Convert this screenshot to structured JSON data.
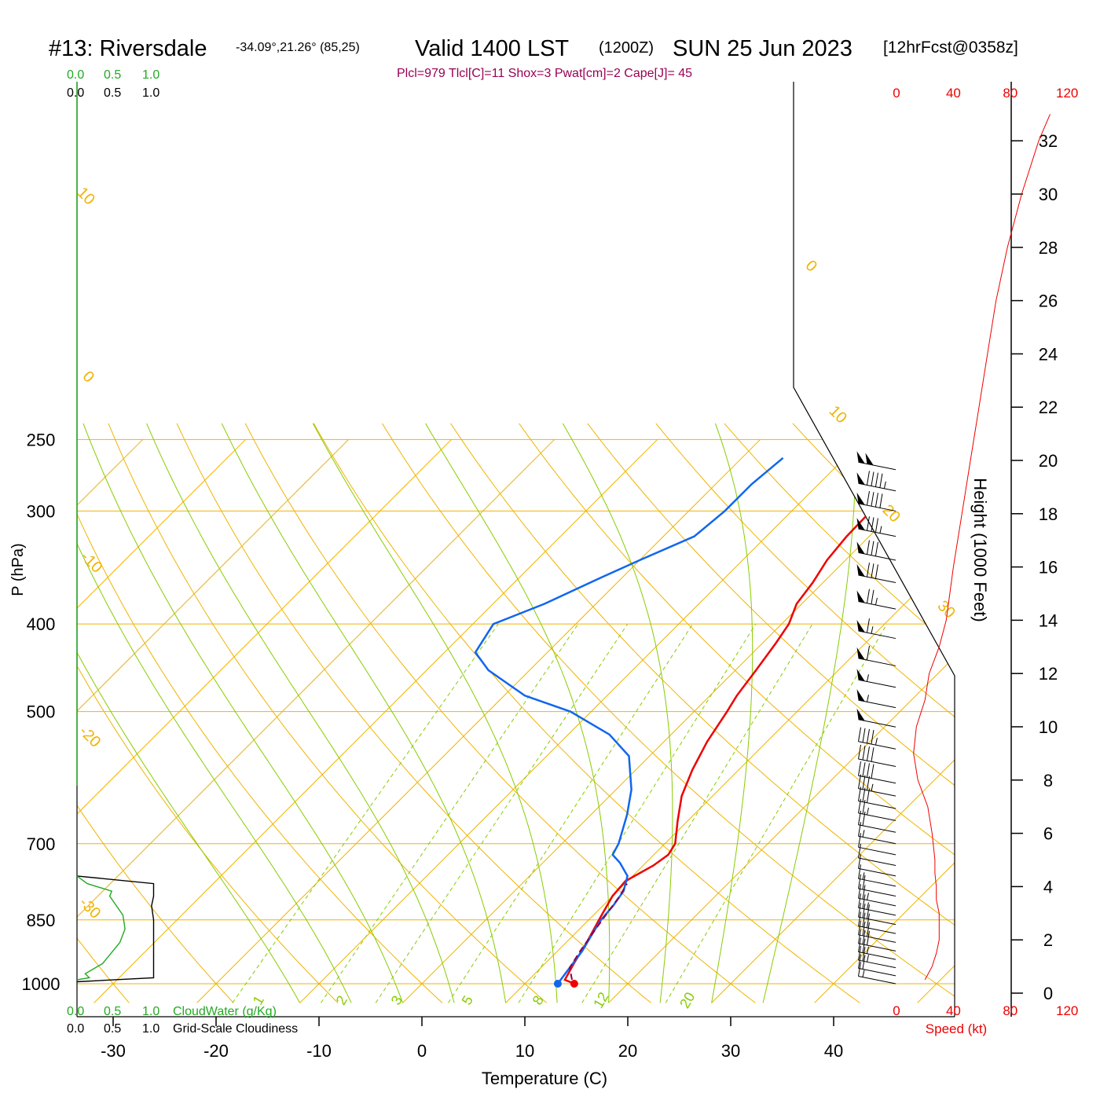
{
  "header": {
    "station": "#13: Riversdale",
    "coords": "-34.09°,21.26° (85,25)",
    "valid": "Valid 1400 LST",
    "zulu": "(1200Z)",
    "date": "SUN 25 Jun 2023",
    "forecast": "[12hrFcst@0358z]",
    "indices": "Plcl=979 Tlcl[C]=11 Shox=3 Pwat[cm]=2 Cape[J]= 45"
  },
  "legend": {
    "cloud_scale_top": [
      "0.0",
      "0.5",
      "1.0"
    ],
    "cloud_scale_bottom": [
      "0.0",
      "0.5",
      "1.0"
    ],
    "cloudwater_label": "CloudWater (g/Kg)",
    "cloudiness_label": "Grid-Scale Cloudiness"
  },
  "colors": {
    "isotherm": "#f0b400",
    "dry_adiabat": "#f0b400",
    "moist_adiabat": "#88cc00",
    "mixing_ratio": "#88cc00",
    "temperature": "#ee0000",
    "dewpoint": "#1166ee",
    "parcel": "#8b004b",
    "cloudwater": "#22aa22",
    "speed": "#ee0000",
    "indices": "#990055"
  },
  "chart_data": {
    "type": "line",
    "subtype": "skew-t log-p sounding",
    "xlabel": "Temperature (C)",
    "ylabel": "P (hPa)",
    "right_label": "Height (1000 Feet)",
    "speed_label": "Speed (kt)",
    "x_ticks": [
      "-30",
      "-20",
      "-10",
      "0",
      "10",
      "20",
      "30",
      "40"
    ],
    "y_ticks": [
      "250",
      "300",
      "400",
      "500",
      "700",
      "850",
      "1000"
    ],
    "height_ticks": [
      "0",
      "2",
      "4",
      "6",
      "8",
      "10",
      "12",
      "14",
      "16",
      "18",
      "20",
      "22",
      "24",
      "26",
      "28",
      "30",
      "32"
    ],
    "speed_ticks": [
      "0",
      "40",
      "80",
      "120"
    ],
    "isotherm_labels": [
      "10",
      "0",
      "-10",
      "-20",
      "-30",
      "0",
      "10",
      "20",
      "30"
    ],
    "mixing_ratio_labels": [
      "1",
      "2",
      "3",
      "5",
      "8",
      "12",
      "20"
    ],
    "series": [
      {
        "name": "temperature",
        "points": [
          [
            14.8,
            1000
          ],
          [
            13.5,
            990
          ],
          [
            12.8,
            950
          ],
          [
            12,
            900
          ],
          [
            11,
            850
          ],
          [
            10,
            800
          ],
          [
            9.8,
            770
          ],
          [
            11,
            740
          ],
          [
            11.4,
            720
          ],
          [
            11,
            700
          ],
          [
            9,
            660
          ],
          [
            7,
            620
          ],
          [
            5.5,
            580
          ],
          [
            4.2,
            540
          ],
          [
            3.2,
            500
          ],
          [
            2.6,
            480
          ],
          [
            2,
            450
          ],
          [
            1.3,
            420
          ],
          [
            0.7,
            400
          ],
          [
            -0.5,
            380
          ],
          [
            -1,
            360
          ],
          [
            -1.8,
            340
          ],
          [
            -2.2,
            320
          ],
          [
            -2.3,
            300
          ],
          [
            -1.8,
            280
          ],
          [
            -1.2,
            262
          ]
        ]
      },
      {
        "name": "dewpoint",
        "points": [
          [
            13.2,
            1000
          ],
          [
            13.1,
            990
          ],
          [
            12.8,
            960
          ],
          [
            12.4,
            920
          ],
          [
            11.7,
            880
          ],
          [
            11.2,
            850
          ],
          [
            11,
            820
          ],
          [
            10.6,
            790
          ],
          [
            9.5,
            760
          ],
          [
            7.5,
            735
          ],
          [
            6,
            720
          ],
          [
            5.5,
            700
          ],
          [
            3.5,
            650
          ],
          [
            1.5,
            610
          ],
          [
            -2,
            560
          ],
          [
            -6,
            530
          ],
          [
            -12,
            500
          ],
          [
            -18,
            480
          ],
          [
            -24,
            450
          ],
          [
            -27,
            430
          ],
          [
            -28,
            400
          ],
          [
            -25,
            380
          ],
          [
            -22,
            355
          ],
          [
            -20,
            340
          ],
          [
            -17,
            320
          ],
          [
            -16.5,
            300
          ],
          [
            -16.5,
            280
          ],
          [
            -16,
            262
          ]
        ]
      },
      {
        "name": "parcel",
        "points": [
          [
            14.2,
            990
          ],
          [
            12.8,
            960
          ],
          [
            12.2,
            920
          ],
          [
            11.7,
            880
          ],
          [
            11.2,
            840
          ],
          [
            10.7,
            800
          ],
          [
            10.2,
            775
          ]
        ]
      }
    ],
    "surface_points": {
      "temperature": [
        14.8,
        1000
      ],
      "dewpoint": [
        13.2,
        1000
      ]
    },
    "wind_profile": [
      {
        "height_kft": 0.5,
        "speed_kt": 20
      },
      {
        "height_kft": 1,
        "speed_kt": 25
      },
      {
        "height_kft": 1.5,
        "speed_kt": 28
      },
      {
        "height_kft": 2,
        "speed_kt": 30
      },
      {
        "height_kft": 2.5,
        "speed_kt": 30
      },
      {
        "height_kft": 3,
        "speed_kt": 30
      },
      {
        "height_kft": 3.5,
        "speed_kt": 28
      },
      {
        "height_kft": 4,
        "speed_kt": 28
      },
      {
        "height_kft": 4.5,
        "speed_kt": 27
      },
      {
        "height_kft": 5,
        "speed_kt": 27
      },
      {
        "height_kft": 6,
        "speed_kt": 25
      },
      {
        "height_kft": 7,
        "speed_kt": 22
      },
      {
        "height_kft": 8,
        "speed_kt": 15
      },
      {
        "height_kft": 9,
        "speed_kt": 12
      },
      {
        "height_kft": 10,
        "speed_kt": 14
      },
      {
        "height_kft": 11,
        "speed_kt": 20
      },
      {
        "height_kft": 12,
        "speed_kt": 23
      },
      {
        "height_kft": 13,
        "speed_kt": 30
      },
      {
        "height_kft": 14,
        "speed_kt": 35
      },
      {
        "height_kft": 16,
        "speed_kt": 40
      },
      {
        "height_kft": 18,
        "speed_kt": 46
      },
      {
        "height_kft": 20,
        "speed_kt": 52
      },
      {
        "height_kft": 22,
        "speed_kt": 58
      },
      {
        "height_kft": 24,
        "speed_kt": 64
      },
      {
        "height_kft": 26,
        "speed_kt": 70
      },
      {
        "height_kft": 28,
        "speed_kt": 78
      },
      {
        "height_kft": 30,
        "speed_kt": 88
      },
      {
        "height_kft": 32,
        "speed_kt": 100
      },
      {
        "height_kft": 33,
        "speed_kt": 108
      }
    ],
    "wind_barbs": [
      {
        "p": 1000,
        "speed_kt": 15
      },
      {
        "p": 980,
        "speed_kt": 20
      },
      {
        "p": 960,
        "speed_kt": 25
      },
      {
        "p": 940,
        "speed_kt": 25
      },
      {
        "p": 920,
        "speed_kt": 30
      },
      {
        "p": 900,
        "speed_kt": 30
      },
      {
        "p": 880,
        "speed_kt": 30
      },
      {
        "p": 860,
        "speed_kt": 30
      },
      {
        "p": 840,
        "speed_kt": 25
      },
      {
        "p": 820,
        "speed_kt": 25
      },
      {
        "p": 800,
        "speed_kt": 20
      },
      {
        "p": 780,
        "speed_kt": 15
      },
      {
        "p": 760,
        "speed_kt": 10
      },
      {
        "p": 740,
        "speed_kt": 10
      },
      {
        "p": 720,
        "speed_kt": 10
      },
      {
        "p": 700,
        "speed_kt": 15
      },
      {
        "p": 680,
        "speed_kt": 20
      },
      {
        "p": 660,
        "speed_kt": 25
      },
      {
        "p": 640,
        "speed_kt": 30
      },
      {
        "p": 620,
        "speed_kt": 35
      },
      {
        "p": 600,
        "speed_kt": 40
      },
      {
        "p": 575,
        "speed_kt": 40
      },
      {
        "p": 550,
        "speed_kt": 45
      },
      {
        "p": 520,
        "speed_kt": 50
      },
      {
        "p": 495,
        "speed_kt": 55
      },
      {
        "p": 470,
        "speed_kt": 55
      },
      {
        "p": 445,
        "speed_kt": 60
      },
      {
        "p": 415,
        "speed_kt": 65
      },
      {
        "p": 385,
        "speed_kt": 75
      },
      {
        "p": 360,
        "speed_kt": 80
      },
      {
        "p": 340,
        "speed_kt": 80
      },
      {
        "p": 320,
        "speed_kt": 85
      },
      {
        "p": 300,
        "speed_kt": 90
      },
      {
        "p": 285,
        "speed_kt": 95
      },
      {
        "p": 270,
        "speed_kt": 100
      }
    ],
    "cloud_profile": {
      "cloudwater": [
        [
          0,
          990
        ],
        [
          0.12,
          985
        ],
        [
          0.08,
          975
        ],
        [
          0.25,
          950
        ],
        [
          0.42,
          900
        ],
        [
          0.47,
          870
        ],
        [
          0.45,
          840
        ],
        [
          0.32,
          800
        ],
        [
          0.34,
          790
        ],
        [
          0.1,
          775
        ],
        [
          0,
          760
        ]
      ],
      "cloudiness": [
        [
          0,
          995
        ],
        [
          0.75,
          985
        ],
        [
          0.75,
          980
        ],
        [
          0.75,
          940
        ],
        [
          0.75,
          900
        ],
        [
          0.75,
          850
        ],
        [
          0.73,
          820
        ],
        [
          0.75,
          800
        ],
        [
          0.75,
          775
        ],
        [
          0,
          760
        ]
      ]
    }
  }
}
